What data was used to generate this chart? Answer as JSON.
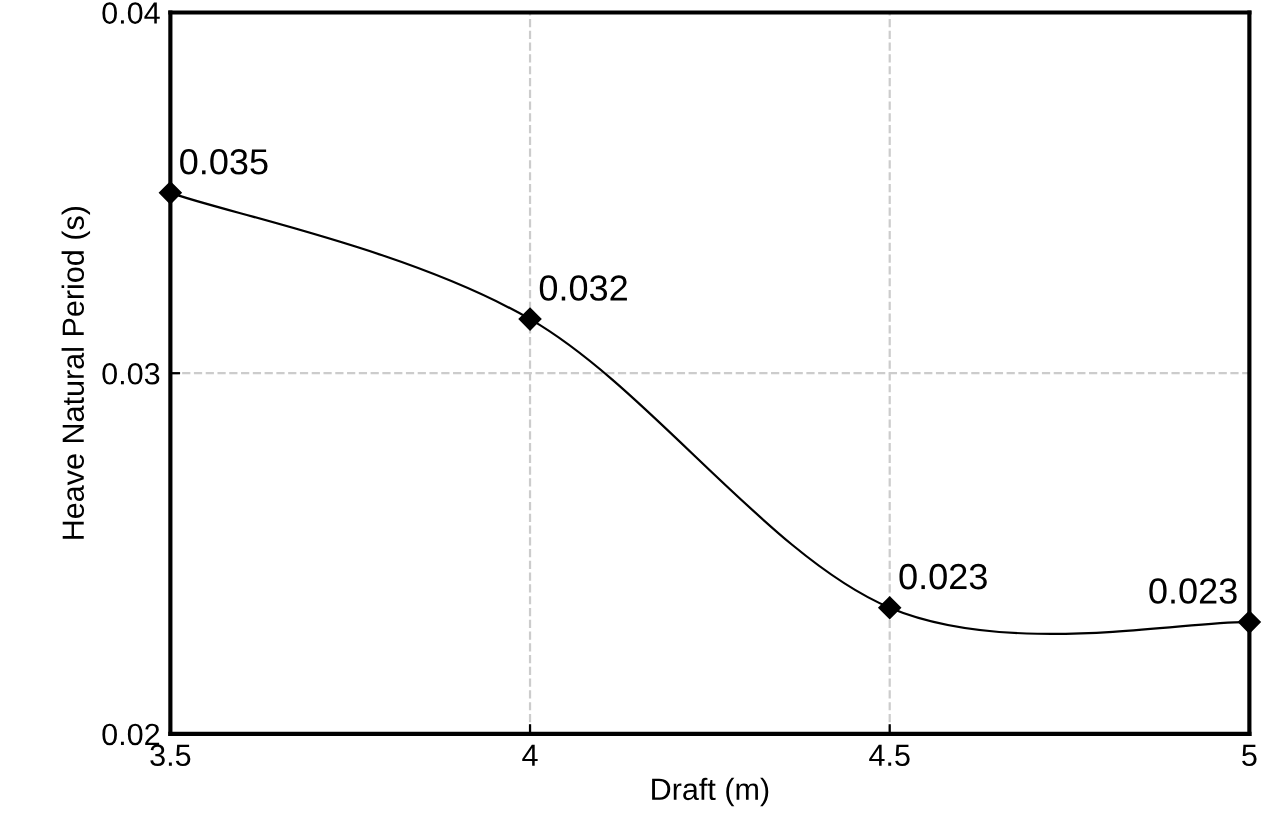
{
  "chart_data": {
    "type": "line",
    "xlabel": "Draft (m)",
    "ylabel": "Heave Natural Period (s)",
    "x": [
      3.5,
      4,
      4.5,
      5
    ],
    "series": [
      {
        "color": "#000000",
        "values": [
          0.035,
          0.0315,
          0.0235,
          0.0231
        ],
        "value_labels": [
          "0.035",
          "0.032",
          "0.023",
          "0.023"
        ]
      }
    ],
    "xlim": [
      3.5,
      5
    ],
    "xticks": [
      3.5,
      4,
      4.5,
      5
    ],
    "ylim": [
      0.02,
      0.04
    ],
    "yticks": [
      0.02,
      0.03,
      0.04
    ],
    "grid": true,
    "marker": "diamond",
    "line_style": "solid"
  }
}
